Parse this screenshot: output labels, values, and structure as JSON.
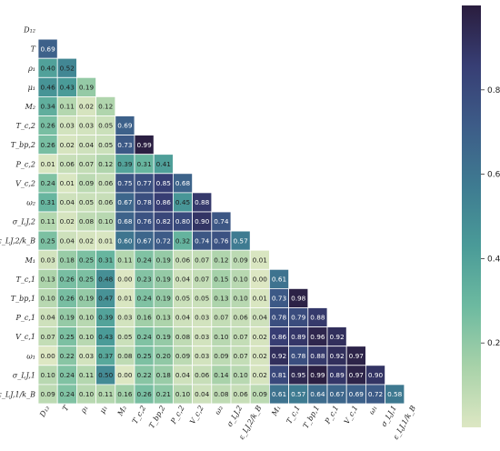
{
  "chart_data": {
    "type": "heatmap",
    "labels": [
      "D₁₂",
      "T",
      "ρ₁",
      "μ₁",
      "M₂",
      "T_c,2",
      "T_bp,2",
      "P_c,2",
      "V_c,2",
      "ω₂",
      "σ_LJ,2",
      "ε_LJ,2/k_B",
      "M₁",
      "T_c,1",
      "T_bp,1",
      "P_c,1",
      "V_c,1",
      "ω₁",
      "σ_LJ,1",
      "ε_LJ,1/k_B"
    ],
    "matrix": [
      [],
      [
        0.69
      ],
      [
        0.4,
        0.52
      ],
      [
        0.46,
        0.43,
        0.19
      ],
      [
        0.34,
        0.11,
        0.02,
        0.12
      ],
      [
        0.26,
        0.03,
        0.03,
        0.05,
        0.69
      ],
      [
        0.26,
        0.02,
        0.04,
        0.05,
        0.73,
        0.99
      ],
      [
        0.01,
        0.06,
        0.07,
        0.12,
        0.39,
        0.31,
        0.41
      ],
      [
        0.24,
        0.01,
        0.09,
        0.06,
        0.75,
        0.77,
        0.85,
        0.68
      ],
      [
        0.31,
        0.04,
        0.05,
        0.06,
        0.67,
        0.78,
        0.86,
        0.45,
        0.88
      ],
      [
        0.11,
        0.02,
        0.08,
        0.1,
        0.68,
        0.76,
        0.82,
        0.8,
        0.9,
        0.74
      ],
      [
        0.25,
        0.04,
        0.02,
        0.01,
        0.6,
        0.67,
        0.72,
        0.32,
        0.74,
        0.76,
        0.57
      ],
      [
        0.03,
        0.18,
        0.25,
        0.31,
        0.11,
        0.24,
        0.19,
        0.06,
        0.07,
        0.12,
        0.09,
        0.01
      ],
      [
        0.13,
        0.26,
        0.25,
        0.48,
        0.0,
        0.23,
        0.19,
        0.04,
        0.07,
        0.15,
        0.1,
        0.0,
        0.61
      ],
      [
        0.1,
        0.26,
        0.19,
        0.47,
        0.01,
        0.24,
        0.19,
        0.05,
        0.05,
        0.13,
        0.1,
        0.01,
        0.73,
        0.98
      ],
      [
        0.04,
        0.19,
        0.1,
        0.39,
        0.03,
        0.16,
        0.13,
        0.04,
        0.03,
        0.07,
        0.06,
        0.04,
        0.78,
        0.79,
        0.88
      ],
      [
        0.07,
        0.25,
        0.1,
        0.43,
        0.05,
        0.24,
        0.19,
        0.08,
        0.03,
        0.1,
        0.07,
        0.02,
        0.86,
        0.89,
        0.96,
        0.92
      ],
      [
        0.0,
        0.22,
        0.03,
        0.37,
        0.08,
        0.25,
        0.2,
        0.09,
        0.03,
        0.09,
        0.07,
        0.02,
        0.92,
        0.78,
        0.88,
        0.92,
        0.97
      ],
      [
        0.1,
        0.24,
        0.11,
        0.5,
        0.0,
        0.22,
        0.18,
        0.04,
        0.06,
        0.14,
        0.1,
        0.02,
        0.81,
        0.95,
        0.99,
        0.89,
        0.97,
        0.9
      ],
      [
        0.09,
        0.24,
        0.1,
        0.11,
        0.16,
        0.26,
        0.21,
        0.1,
        0.04,
        0.08,
        0.06,
        0.09,
        0.61,
        0.57,
        0.64,
        0.67,
        0.69,
        0.72,
        0.58
      ]
    ],
    "colorbar": {
      "range": [
        0,
        1
      ],
      "ticks": [
        "0.2",
        "0.4",
        "0.6",
        "0.8"
      ]
    },
    "colormap": [
      "#dde7c3",
      "#a8d2a9",
      "#6dbaa0",
      "#4a9b98",
      "#3e7b91",
      "#3d5c88",
      "#373e74",
      "#2a1d3e"
    ]
  }
}
